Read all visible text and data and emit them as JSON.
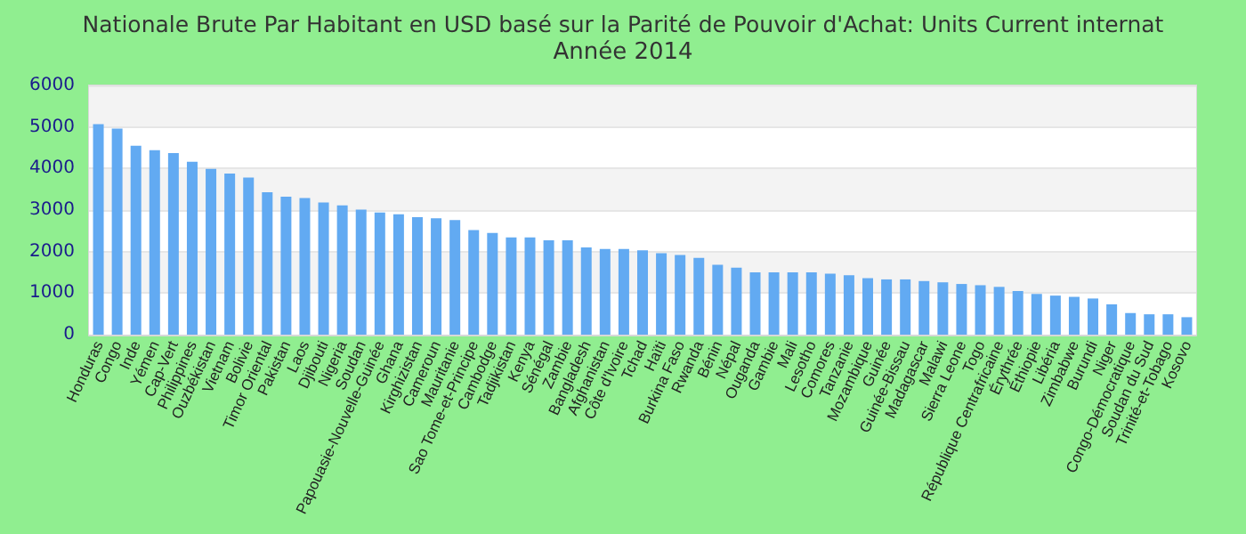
{
  "chart_data": {
    "type": "bar",
    "title": "Nationale Brute Par Habitant en USD basé sur la Parité de Pouvoir d'Achat: Units Current internat",
    "subtitle": "Année 2014",
    "categories": [
      "Honduras",
      "Congo",
      "Inde",
      "Yémen",
      "Cap-Vert",
      "Philippines",
      "Ouzbékistan",
      "Vietnam",
      "Bolivie",
      "Timor Oriental",
      "Pakistan",
      "Laos",
      "Djibouti",
      "Nigeria",
      "Soudan",
      "Papouasie-Nouvelle-Guinée",
      "Ghana",
      "Kirghizistan",
      "Cameroun",
      "Mauritanie",
      "Sao Tome-et-Principe",
      "Cambodge",
      "Tadjikistan",
      "Kenya",
      "Sénégal",
      "Zambie",
      "Bangladesh",
      "Afghanistan",
      "Côte d'Ivoire",
      "Tchad",
      "Haïti",
      "Burkina Faso",
      "Rwanda",
      "Bénin",
      "Népal",
      "Ouganda",
      "Gambie",
      "Mali",
      "Lesotho",
      "Comores",
      "Tanzanie",
      "Mozambique",
      "Guinée",
      "Guinée-Bissau",
      "Madagascar",
      "Malawi",
      "Sierra Leone",
      "Togo",
      "République Centrafricaine",
      "Érythrée",
      "Éthiopie",
      "Libéria",
      "Zimbabwe",
      "Burundi",
      "Niger",
      "Congo-Démocratique",
      "Soudan du Sud",
      "Trinité-et-Tobago",
      "Kosovo"
    ],
    "values": [
      5070,
      4960,
      4550,
      4440,
      4370,
      4160,
      3990,
      3880,
      3780,
      3430,
      3320,
      3290,
      3180,
      3110,
      3010,
      2940,
      2900,
      2830,
      2800,
      2760,
      2520,
      2450,
      2340,
      2340,
      2270,
      2270,
      2100,
      2060,
      2060,
      2030,
      1960,
      1920,
      1850,
      1680,
      1610,
      1500,
      1500,
      1500,
      1500,
      1470,
      1430,
      1360,
      1330,
      1330,
      1290,
      1260,
      1220,
      1190,
      1150,
      1050,
      980,
      940,
      910,
      870,
      730,
      520,
      490,
      490,
      420
    ],
    "color": "#62aaf2",
    "ylim": [
      0,
      6000
    ],
    "yticks": [
      0,
      1000,
      2000,
      3000,
      4000,
      5000,
      6000
    ],
    "grid": "y"
  }
}
